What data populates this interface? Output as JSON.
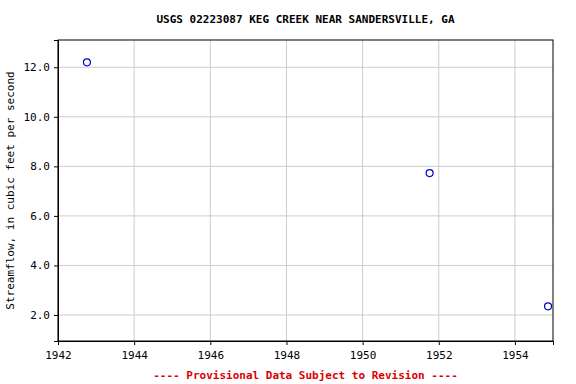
{
  "chart_data": {
    "type": "scatter",
    "title": "USGS 02223087 KEG CREEK NEAR SANDERSVILLE, GA",
    "y_label": "Streamflow, in cubic feet per second",
    "annotation": "---- Provisional Data Subject to Revision ----",
    "x": [
      1942.76,
      1951.76,
      1954.87
    ],
    "y": [
      12.2,
      7.73,
      2.35
    ],
    "color": "#0000cc",
    "marker": "circle-open",
    "xlim": [
      1942,
      1955
    ],
    "xticks": [
      1942,
      1944,
      1946,
      1948,
      1950,
      1952,
      1954
    ],
    "ylim": [
      0.95,
      13.1
    ],
    "yticks": [
      {
        "value": 2,
        "label": "2.0"
      },
      {
        "value": 4,
        "label": "4.0"
      },
      {
        "value": 6,
        "label": "6.0"
      },
      {
        "value": 8,
        "label": "8.0"
      },
      {
        "value": 10,
        "label": "10.0"
      },
      {
        "value": 12,
        "label": "12.0"
      }
    ],
    "grid": true
  }
}
